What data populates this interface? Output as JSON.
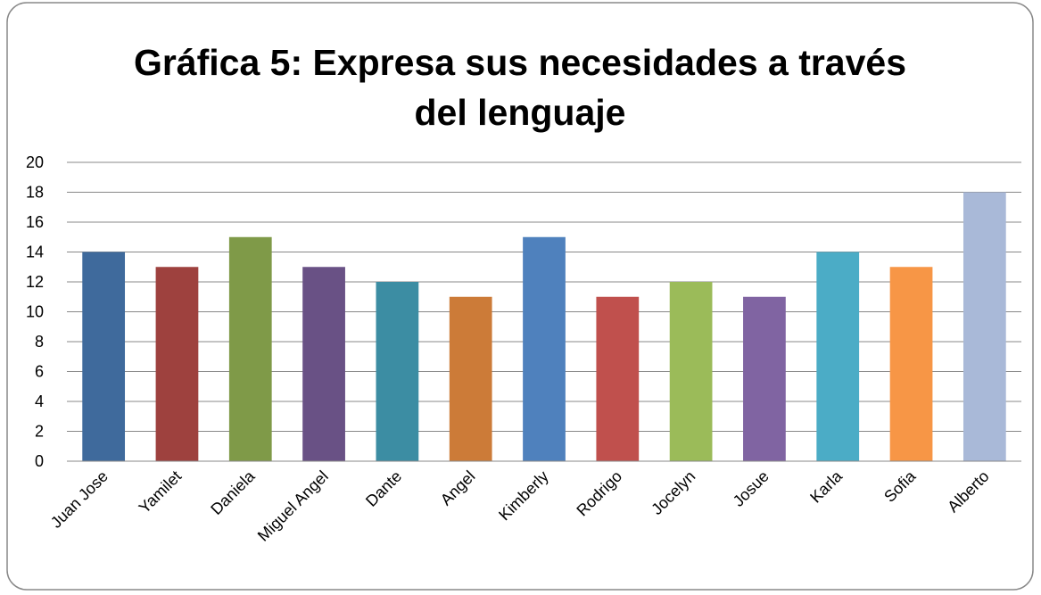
{
  "chart_data": {
    "type": "bar",
    "title": "Gráfica 5: Expresa sus necesidades a través del lenguaje",
    "categories": [
      "Juan Jose",
      "Yamilet",
      "Daniela",
      "Miguel Angel",
      "Dante",
      "Angel",
      "Kimberly",
      "Rodrigo",
      "Jocelyn",
      "Josue",
      "Karla",
      "Sofia",
      "Alberto"
    ],
    "values": [
      14,
      13,
      15,
      13,
      12,
      11,
      15,
      11,
      12,
      11,
      14,
      13,
      18
    ],
    "colors": [
      "#3f6a9c",
      "#9e413e",
      "#7f9a48",
      "#695185",
      "#3c8da3",
      "#cc7b38",
      "#4f81bd",
      "#c0504d",
      "#9bbb59",
      "#8064a2",
      "#4bacc6",
      "#f79646",
      "#a9b9d8"
    ],
    "ylim": [
      0,
      20
    ],
    "yticks": [
      0,
      2,
      4,
      6,
      8,
      10,
      12,
      14,
      16,
      18,
      20
    ],
    "grid": true
  }
}
